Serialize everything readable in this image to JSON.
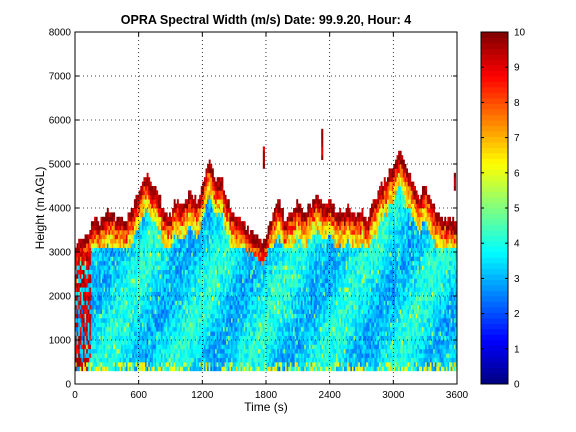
{
  "chart_data": {
    "type": "heatmap",
    "title": "OPRA Spectral Width (m/s)  Date: 99.9.20, Hour: 4",
    "xlabel": "Time (s)",
    "ylabel": "Height (m AGL)",
    "xlim": [
      0,
      3600
    ],
    "ylim": [
      0,
      8000
    ],
    "xticks": [
      0,
      600,
      1200,
      1800,
      2400,
      3000,
      3600
    ],
    "xtick_labels": [
      "0",
      "600",
      "1200",
      "1800",
      "2400",
      "3000",
      "3600"
    ],
    "yticks": [
      0,
      1000,
      2000,
      3000,
      4000,
      5000,
      6000,
      7000,
      8000
    ],
    "ytick_labels": [
      "0",
      "1000",
      "2000",
      "3000",
      "4000",
      "5000",
      "6000",
      "7000",
      "8000"
    ],
    "grid": true,
    "colorbar": {
      "range": [
        0,
        10
      ],
      "ticks": [
        0,
        1,
        2,
        3,
        4,
        5,
        6,
        7,
        8,
        9,
        10
      ],
      "tick_labels": [
        "0",
        "1",
        "2",
        "3",
        "4",
        "5",
        "6",
        "7",
        "8",
        "9",
        "10"
      ],
      "colormap": "jet"
    },
    "data_region": {
      "min_height": 300,
      "bulk_top_height": 3100,
      "boundary_layer_top": [
        [
          0,
          3100
        ],
        [
          60,
          3200
        ],
        [
          120,
          3400
        ],
        [
          180,
          3700
        ],
        [
          240,
          3600
        ],
        [
          300,
          3900
        ],
        [
          360,
          3800
        ],
        [
          420,
          3700
        ],
        [
          480,
          3700
        ],
        [
          540,
          4000
        ],
        [
          600,
          4300
        ],
        [
          660,
          4800
        ],
        [
          720,
          4500
        ],
        [
          780,
          4300
        ],
        [
          840,
          3900
        ],
        [
          900,
          3800
        ],
        [
          960,
          4200
        ],
        [
          1020,
          4000
        ],
        [
          1080,
          4400
        ],
        [
          1140,
          4100
        ],
        [
          1200,
          4400
        ],
        [
          1260,
          5100
        ],
        [
          1320,
          4600
        ],
        [
          1380,
          4600
        ],
        [
          1440,
          4100
        ],
        [
          1500,
          3800
        ],
        [
          1560,
          3700
        ],
        [
          1620,
          3500
        ],
        [
          1680,
          3400
        ],
        [
          1740,
          3200
        ],
        [
          1800,
          3300
        ],
        [
          1860,
          3800
        ],
        [
          1920,
          4100
        ],
        [
          1980,
          3700
        ],
        [
          2040,
          3900
        ],
        [
          2100,
          4100
        ],
        [
          2160,
          3900
        ],
        [
          2220,
          4000
        ],
        [
          2280,
          4300
        ],
        [
          2340,
          4000
        ],
        [
          2400,
          4100
        ],
        [
          2460,
          3900
        ],
        [
          2520,
          3800
        ],
        [
          2580,
          4000
        ],
        [
          2640,
          3800
        ],
        [
          2700,
          3900
        ],
        [
          2760,
          3700
        ],
        [
          2820,
          4100
        ],
        [
          2880,
          4400
        ],
        [
          2940,
          4700
        ],
        [
          3000,
          4900
        ],
        [
          3060,
          5300
        ],
        [
          3120,
          4900
        ],
        [
          3180,
          4500
        ],
        [
          3240,
          4200
        ],
        [
          3300,
          4500
        ],
        [
          3360,
          4100
        ],
        [
          3420,
          3800
        ],
        [
          3480,
          3700
        ],
        [
          3540,
          3700
        ],
        [
          3600,
          3700
        ]
      ],
      "isolated_echoes": [
        {
          "t": 1770,
          "h0": 4900,
          "h1": 5400
        },
        {
          "t": 2320,
          "h0": 5100,
          "h1": 5800
        },
        {
          "t": 3570,
          "h0": 4400,
          "h1": 4800
        }
      ],
      "typical_interior_width": 3.5,
      "typical_top_edge_width": 9.5
    }
  }
}
